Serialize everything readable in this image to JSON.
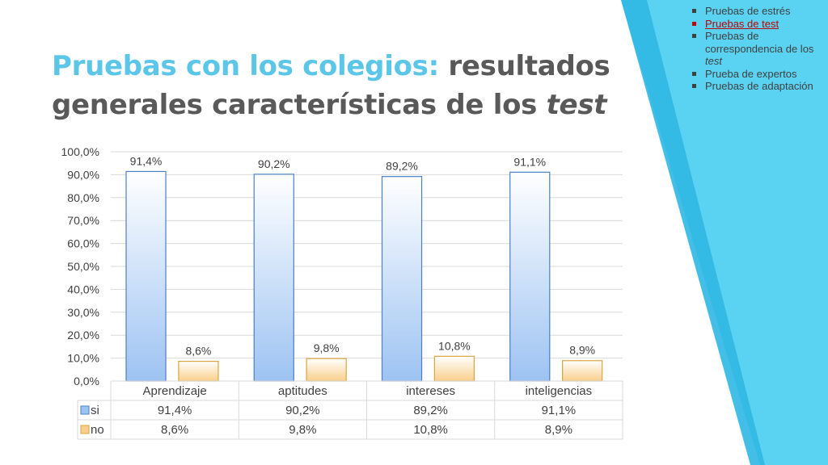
{
  "title": {
    "part1": "Pruebas con los colegios:",
    "part2": "resultados generales características de los",
    "part3": "test"
  },
  "sidebar": {
    "items": [
      {
        "text": "Pruebas de estrés",
        "em": "",
        "active": false
      },
      {
        "text": "Pruebas de test",
        "em": "",
        "active": true
      },
      {
        "text": "Pruebas de correspondencia de los",
        "em": "test",
        "active": false
      },
      {
        "text": "Prueba de expertos",
        "em": "",
        "active": false
      },
      {
        "text": "Pruebas de adaptación",
        "em": "",
        "active": false
      }
    ]
  },
  "chart_data": {
    "type": "bar",
    "categories": [
      "Aprendizaje",
      "aptitudes",
      "intereses",
      "inteligencias"
    ],
    "series": [
      {
        "name": "si",
        "values": [
          91.4,
          90.2,
          89.2,
          91.1
        ],
        "labels": [
          "91,4%",
          "90,2%",
          "89,2%",
          "91,1%"
        ],
        "color": "#9dc3f2"
      },
      {
        "name": "no",
        "values": [
          8.6,
          9.8,
          10.8,
          8.9
        ],
        "labels": [
          "8,6%",
          "9,8%",
          "10,8%",
          "8,9%"
        ],
        "color": "#f9cf8b"
      }
    ],
    "ylim": [
      0,
      100
    ],
    "yticks": [
      "0,0%",
      "10,0%",
      "20,0%",
      "30,0%",
      "40,0%",
      "50,0%",
      "60,0%",
      "70,0%",
      "80,0%",
      "90,0%",
      "100,0%"
    ],
    "grid": true,
    "data_table": true
  },
  "colors": {
    "accent": "#5bc6e8",
    "title_gray": "#595959",
    "link_red": "#c00000",
    "deco_light": "#5ad3f3",
    "deco_dark": "#2fb7e3"
  }
}
